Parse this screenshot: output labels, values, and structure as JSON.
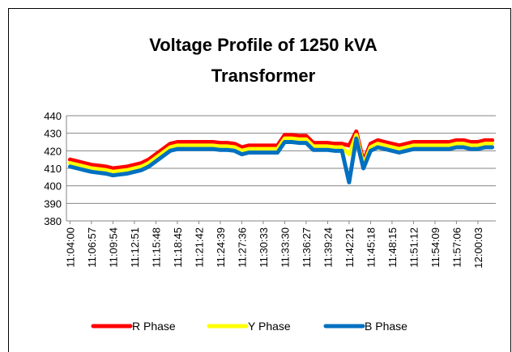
{
  "chart_data": {
    "type": "line",
    "title": [
      "Voltage Profile of 1250 kVA",
      "Transformer"
    ],
    "categories": [
      "11:04:00",
      null,
      null,
      "11:06:57",
      null,
      null,
      "11:09:54",
      null,
      null,
      "11:12:51",
      null,
      null,
      "11:15:48",
      null,
      null,
      "11:18:45",
      null,
      null,
      "11:21:42",
      null,
      null,
      "11:24:39",
      null,
      null,
      "11:27:36",
      null,
      null,
      "11:30:33",
      null,
      null,
      "11:33:30",
      null,
      null,
      "11:36:27",
      null,
      null,
      "11:39:24",
      null,
      null,
      "11:42:21",
      null,
      null,
      "11:45:18",
      null,
      null,
      "11:48:15",
      null,
      null,
      "11:51:12",
      null,
      null,
      "11:54:09",
      null,
      null,
      "11:57:06",
      null,
      null,
      "12:00:03",
      null,
      null
    ],
    "series": [
      {
        "name": "R Phase",
        "color": "#ff0000",
        "values": [
          415,
          414,
          413,
          412,
          411.5,
          411,
          410,
          410.5,
          411,
          412,
          413,
          415,
          418,
          421,
          424,
          425,
          425,
          425,
          425,
          425,
          425,
          424.5,
          424.5,
          424,
          422,
          423,
          423,
          423,
          423,
          423,
          429,
          429,
          428.5,
          428.5,
          424.5,
          424.5,
          424.5,
          424,
          424,
          423,
          431,
          414,
          424,
          426,
          425,
          424,
          423,
          424,
          425,
          425,
          425,
          425,
          425,
          425,
          426,
          426,
          425,
          425,
          426,
          426
        ]
      },
      {
        "name": "Y Phase",
        "color": "#ffff00",
        "values": [
          413,
          412,
          411,
          410,
          409.5,
          409,
          408,
          408.5,
          409,
          410,
          411,
          413,
          416,
          419,
          422,
          423,
          423,
          423,
          423,
          423,
          423,
          422.5,
          422.5,
          422,
          420,
          421,
          421,
          421,
          421,
          421,
          427,
          427,
          426.5,
          426.5,
          422.5,
          422.5,
          422.5,
          422,
          422,
          418,
          429,
          412,
          422,
          424,
          423,
          422,
          421,
          422,
          423,
          423,
          423,
          423,
          423,
          423,
          424,
          424,
          423,
          423,
          424,
          424
        ]
      },
      {
        "name": "B Phase",
        "color": "#0070c0",
        "values": [
          411,
          410,
          409,
          408,
          407.5,
          407,
          406,
          406.5,
          407,
          408,
          409,
          411,
          414,
          417,
          420,
          421,
          421,
          421,
          421,
          421,
          421,
          420.5,
          420.5,
          420,
          418,
          419,
          419,
          419,
          419,
          419,
          425,
          425,
          424.5,
          424.5,
          420.5,
          420.5,
          420.5,
          420,
          420,
          402,
          427,
          410,
          420,
          422,
          421,
          420,
          419,
          420,
          421,
          421,
          421,
          421,
          421,
          421,
          422,
          422,
          421,
          421,
          422,
          422
        ]
      }
    ],
    "ylim": [
      380,
      440
    ],
    "yticks": [
      380,
      390,
      400,
      410,
      420,
      430,
      440
    ],
    "grid": true,
    "legend": "bottom"
  }
}
